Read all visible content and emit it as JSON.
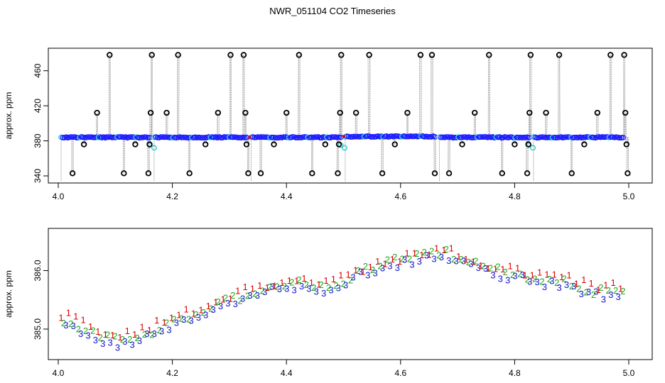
{
  "title": "NWR_051104  CO2 Timeseries",
  "colors": {
    "axis": "#000000",
    "needle": "#8c8c8c",
    "outlier": "#000000",
    "main": "#1a1aff",
    "main_edge": "#2bd4d4",
    "aux": "#30c9c9",
    "flag_red": "#d40000",
    "s1": "#e00000",
    "s2": "#1faa1f",
    "s3": "#1515cc"
  },
  "chart_data": [
    {
      "type": "scatter",
      "panel": "top",
      "ylabel": "approx. ppm",
      "xlabel": "",
      "xlim": [
        4.0,
        5.0
      ],
      "ylim": [
        340,
        480
      ],
      "xticks": [
        "4.0",
        "4.2",
        "4.4",
        "4.6",
        "4.8",
        "5.0"
      ],
      "yticks": [
        "340",
        "380",
        "420",
        "460"
      ],
      "grid": false,
      "baseline_segments": [
        {
          "x0": 4.005,
          "x1": 4.16,
          "y": 384
        },
        {
          "x0": 4.168,
          "x1": 4.33,
          "y": 384
        },
        {
          "x0": 4.338,
          "x1": 4.495,
          "y": 384
        },
        {
          "x0": 4.503,
          "x1": 4.66,
          "y": 385
        },
        {
          "x0": 4.668,
          "x1": 4.825,
          "y": 384
        },
        {
          "x0": 4.833,
          "x1": 4.99,
          "y": 384
        }
      ],
      "outliers": [
        {
          "x": 4.025,
          "y": 343
        },
        {
          "x": 4.045,
          "y": 376
        },
        {
          "x": 4.068,
          "y": 412
        },
        {
          "x": 4.09,
          "y": 478
        },
        {
          "x": 4.115,
          "y": 343
        },
        {
          "x": 4.135,
          "y": 376
        },
        {
          "x": 4.158,
          "y": 343
        },
        {
          "x": 4.16,
          "y": 376
        },
        {
          "x": 4.162,
          "y": 412
        },
        {
          "x": 4.164,
          "y": 478
        },
        {
          "x": 4.19,
          "y": 412
        },
        {
          "x": 4.21,
          "y": 478
        },
        {
          "x": 4.23,
          "y": 343
        },
        {
          "x": 4.258,
          "y": 376
        },
        {
          "x": 4.28,
          "y": 412
        },
        {
          "x": 4.302,
          "y": 478
        },
        {
          "x": 4.325,
          "y": 478
        },
        {
          "x": 4.328,
          "y": 412
        },
        {
          "x": 4.33,
          "y": 376
        },
        {
          "x": 4.333,
          "y": 343
        },
        {
          "x": 4.355,
          "y": 343
        },
        {
          "x": 4.378,
          "y": 376
        },
        {
          "x": 4.4,
          "y": 412
        },
        {
          "x": 4.422,
          "y": 478
        },
        {
          "x": 4.445,
          "y": 343
        },
        {
          "x": 4.468,
          "y": 376
        },
        {
          "x": 4.49,
          "y": 343
        },
        {
          "x": 4.492,
          "y": 376
        },
        {
          "x": 4.494,
          "y": 412
        },
        {
          "x": 4.496,
          "y": 478
        },
        {
          "x": 4.522,
          "y": 412
        },
        {
          "x": 4.545,
          "y": 478
        },
        {
          "x": 4.568,
          "y": 343
        },
        {
          "x": 4.59,
          "y": 376
        },
        {
          "x": 4.612,
          "y": 412
        },
        {
          "x": 4.635,
          "y": 478
        },
        {
          "x": 4.655,
          "y": 478
        },
        {
          "x": 4.66,
          "y": 343
        },
        {
          "x": 4.685,
          "y": 343
        },
        {
          "x": 4.708,
          "y": 376
        },
        {
          "x": 4.73,
          "y": 412
        },
        {
          "x": 4.755,
          "y": 478
        },
        {
          "x": 4.778,
          "y": 343
        },
        {
          "x": 4.8,
          "y": 376
        },
        {
          "x": 4.822,
          "y": 343
        },
        {
          "x": 4.824,
          "y": 376
        },
        {
          "x": 4.826,
          "y": 412
        },
        {
          "x": 4.828,
          "y": 478
        },
        {
          "x": 4.855,
          "y": 412
        },
        {
          "x": 4.878,
          "y": 478
        },
        {
          "x": 4.9,
          "y": 343
        },
        {
          "x": 4.922,
          "y": 376
        },
        {
          "x": 4.945,
          "y": 412
        },
        {
          "x": 4.968,
          "y": 478
        },
        {
          "x": 4.992,
          "y": 478
        },
        {
          "x": 4.994,
          "y": 412
        },
        {
          "x": 4.996,
          "y": 376
        },
        {
          "x": 4.998,
          "y": 343
        }
      ],
      "aux_points": [
        {
          "x": 4.16,
          "y": 375
        },
        {
          "x": 4.168,
          "y": 372
        },
        {
          "x": 4.495,
          "y": 375
        },
        {
          "x": 4.502,
          "y": 372
        },
        {
          "x": 4.825,
          "y": 375
        },
        {
          "x": 4.832,
          "y": 372
        }
      ]
    },
    {
      "type": "line",
      "panel": "bottom",
      "ylabel": "approx. ppm",
      "xlabel": "",
      "xlim": [
        4.0,
        5.0
      ],
      "ylim": [
        384.6,
        386.6
      ],
      "xticks": [
        "4.0",
        "4.2",
        "4.4",
        "4.6",
        "4.8",
        "5.0"
      ],
      "yticks": [
        "385.0",
        "386.0"
      ],
      "grid": false,
      "markers": [
        "1",
        "2",
        "3"
      ],
      "x": [
        4.0,
        4.02,
        4.04,
        4.06,
        4.08,
        4.1,
        4.12,
        4.14,
        4.16,
        4.18,
        4.2,
        4.22,
        4.24,
        4.26,
        4.28,
        4.3,
        4.32,
        4.34,
        4.36,
        4.38,
        4.4,
        4.42,
        4.44,
        4.46,
        4.48,
        4.5,
        4.52,
        4.54,
        4.56,
        4.58,
        4.6,
        4.62,
        4.64,
        4.66,
        4.68,
        4.7,
        4.72,
        4.74,
        4.76,
        4.78,
        4.8,
        4.82,
        4.84,
        4.86,
        4.88,
        4.9,
        4.92,
        4.94,
        4.96,
        4.98,
        5.0
      ],
      "y": [
        385.1,
        385.15,
        385.05,
        384.95,
        384.85,
        384.82,
        384.85,
        384.9,
        384.97,
        385.05,
        385.12,
        385.2,
        385.27,
        385.35,
        385.42,
        385.5,
        385.57,
        385.62,
        385.68,
        385.73,
        385.78,
        385.8,
        385.76,
        385.72,
        385.78,
        385.85,
        385.95,
        386.02,
        386.1,
        386.15,
        386.18,
        386.22,
        386.26,
        386.3,
        386.3,
        386.22,
        386.15,
        386.08,
        386.02,
        385.98,
        385.95,
        385.9,
        385.88,
        385.85,
        385.82,
        385.78,
        385.72,
        385.66,
        385.62,
        385.68,
        385.72
      ],
      "series": [
        {
          "name": "1",
          "offset": 0.06
        },
        {
          "name": "2",
          "offset": 0.0
        },
        {
          "name": "3",
          "offset": -0.06
        }
      ]
    }
  ]
}
